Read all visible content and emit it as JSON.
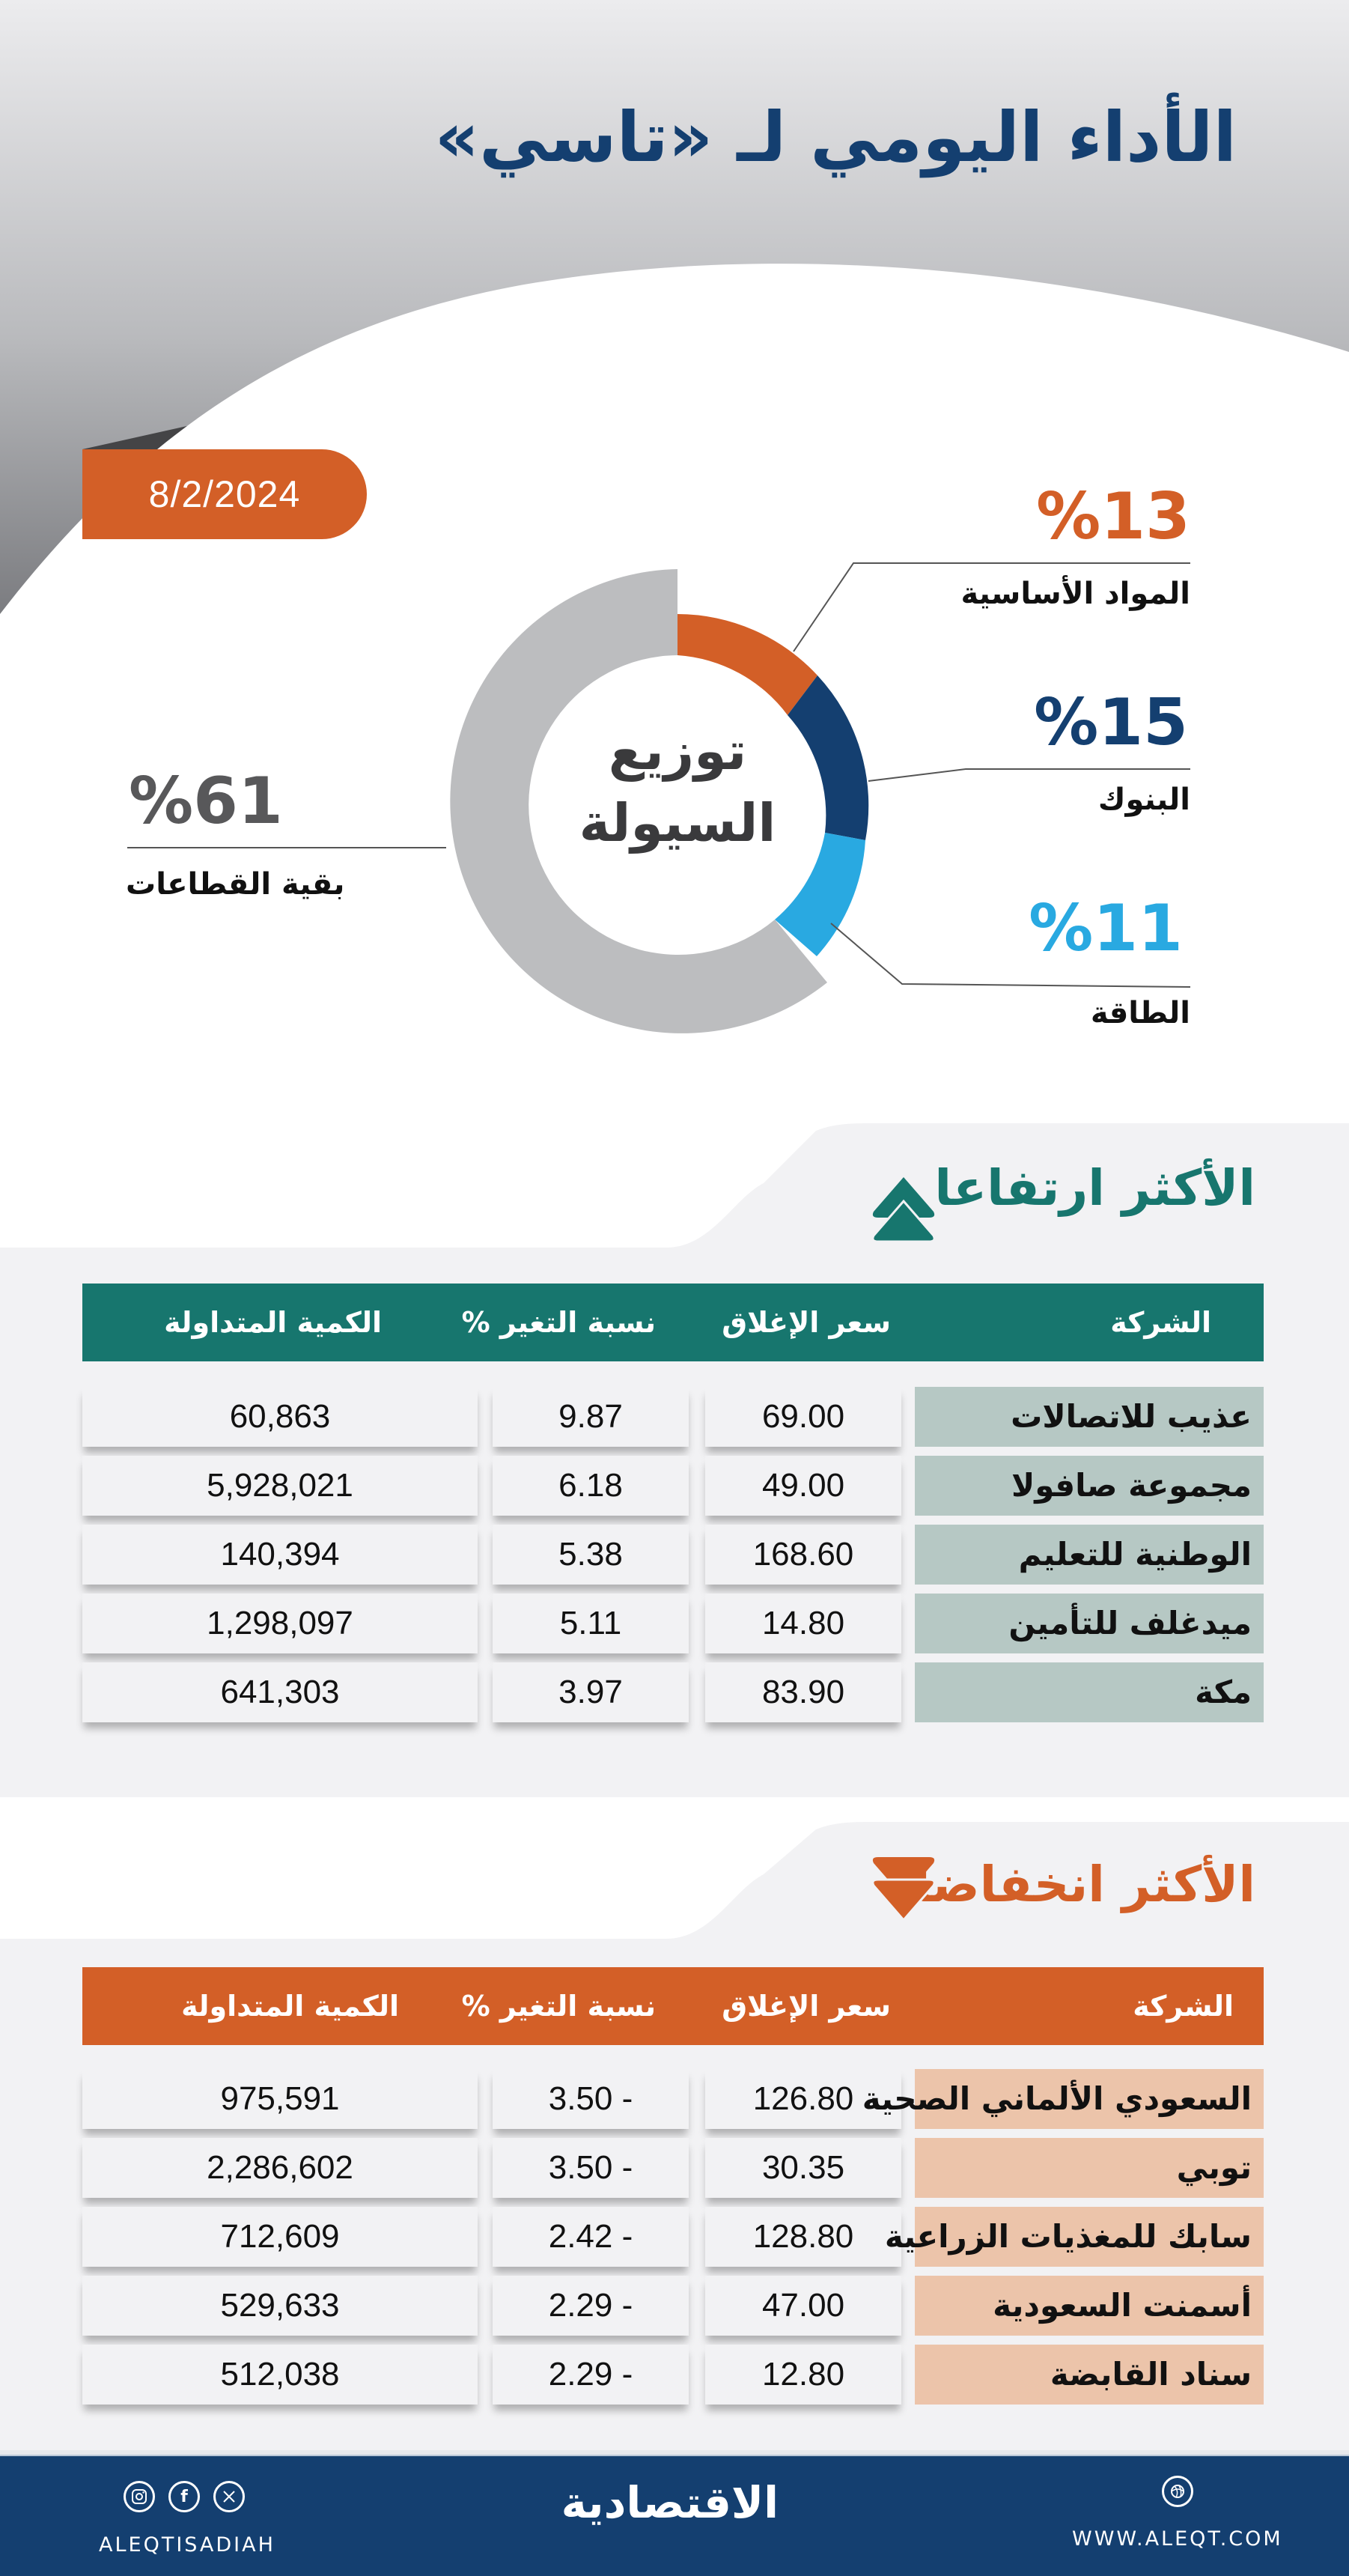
{
  "header": {
    "title": "الأداء اليومي لـ «تاسي»",
    "date": "8/2/2024"
  },
  "colors": {
    "navy": "#143f70",
    "orange": "#d35f27",
    "cyan": "#29a9e1",
    "grey": "#bcbdbf",
    "teal": "#17766e",
    "teal_name_bg": "#b6c8c4",
    "peach_name_bg": "#ecc4aa"
  },
  "donut": {
    "center_line1": "توزيع",
    "center_line2": "السيولة",
    "sectors": [
      {
        "label": "المواد الأساسية",
        "pct_text": "%13",
        "value": 13,
        "color": "#d35f27"
      },
      {
        "label": "البنوك",
        "pct_text": "%15",
        "value": 15,
        "color": "#143f70"
      },
      {
        "label": "الطاقة",
        "pct_text": "%11",
        "value": 11,
        "color": "#29a9e1"
      },
      {
        "label": "بقية القطاعات",
        "pct_text": "%61",
        "value": 61,
        "color": "#bcbdbf"
      }
    ]
  },
  "chart_data": {
    "type": "pie",
    "title": "توزيع السيولة",
    "categories": [
      "المواد الأساسية",
      "البنوك",
      "الطاقة",
      "بقية القطاعات"
    ],
    "values": [
      13,
      15,
      11,
      61
    ],
    "unit": "%",
    "colors": [
      "#d35f27",
      "#143f70",
      "#29a9e1",
      "#bcbdbf"
    ],
    "style": "donut",
    "legend_position": "callouts"
  },
  "columns": {
    "company": "الشركة",
    "close": "سعر الإغلاق",
    "change": "نسبة التغير %",
    "volume": "الكمية المتداولة"
  },
  "gainers": {
    "title": "الأكثر ارتفاعا",
    "rows": [
      {
        "company": "عذيب للاتصالات",
        "close": "69.00",
        "change": "9.87",
        "volume": "60,863"
      },
      {
        "company": "مجموعة صافولا",
        "close": "49.00",
        "change": "6.18",
        "volume": "5,928,021"
      },
      {
        "company": "الوطنية للتعليم",
        "close": "168.60",
        "change": "5.38",
        "volume": "140,394"
      },
      {
        "company": "ميدغلف للتأمين",
        "close": "14.80",
        "change": "5.11",
        "volume": "1,298,097"
      },
      {
        "company": "مكة",
        "close": "83.90",
        "change": "3.97",
        "volume": "641,303"
      }
    ]
  },
  "losers": {
    "title": "الأكثر انخفاضا",
    "rows": [
      {
        "company": "السعودي الألماني الصحية",
        "close": "126.80",
        "change": "3.50 -",
        "volume": "975,591"
      },
      {
        "company": "توبي",
        "close": "30.35",
        "change": "3.50 -",
        "volume": "2,286,602"
      },
      {
        "company": "سابك للمغذيات الزراعية",
        "close": "128.80",
        "change": "2.42 -",
        "volume": "712,609"
      },
      {
        "company": "أسمنت السعودية",
        "close": "47.00",
        "change": "2.29 -",
        "volume": "529,633"
      },
      {
        "company": "سناد القابضة",
        "close": "12.80",
        "change": "2.29 -",
        "volume": "512,038"
      }
    ]
  },
  "footer": {
    "social_handle": "ALEQTISADIAH",
    "brand": "الاقتصادية",
    "website": "WWW.ALEQT.COM",
    "social_icons": [
      "instagram-icon",
      "facebook-icon",
      "x-icon"
    ],
    "web_icon": "globe-icon"
  }
}
